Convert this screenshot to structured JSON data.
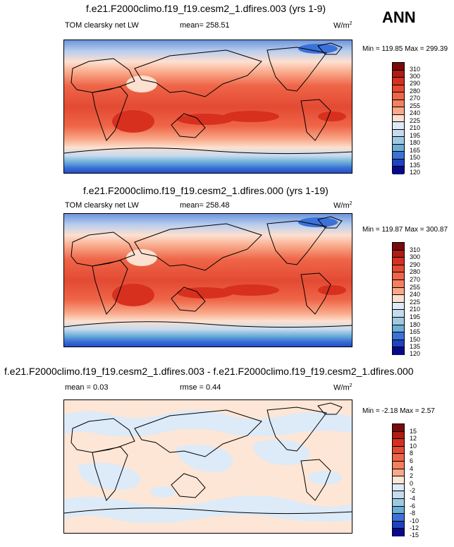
{
  "season": "ANN",
  "panels": [
    {
      "title": "f.e21.F2000climo.f19_f19.cesm2_1.dfires.003 (yrs 1-9)",
      "variable": "TOM clearsky net LW",
      "mean_label": "mean= 258.51",
      "units": "W/m",
      "units_exp": "2",
      "minmax": "Min = 119.85 Max = 299.39",
      "levels": [
        "310",
        "300",
        "290",
        "280",
        "270",
        "255",
        "240",
        "225",
        "210",
        "195",
        "180",
        "165",
        "150",
        "135",
        "120"
      ]
    },
    {
      "title": "f.e21.F2000climo.f19_f19.cesm2_1.dfires.000 (yrs 1-19)",
      "variable": "TOM clearsky net LW",
      "mean_label": "mean= 258.48",
      "units": "W/m",
      "units_exp": "2",
      "minmax": "Min = 119.87 Max = 300.87",
      "levels": [
        "310",
        "300",
        "290",
        "280",
        "270",
        "255",
        "240",
        "225",
        "210",
        "195",
        "180",
        "165",
        "150",
        "135",
        "120"
      ]
    },
    {
      "title": "f.e21.F2000climo.f19_f19.cesm2_1.dfires.003 - f.e21.F2000climo.f19_f19.cesm2_1.dfires.000",
      "variable": "mean =   0.03",
      "mean_label": "rmse =   0.44",
      "units": "W/m",
      "units_exp": "2",
      "minmax": "Min =  -2.18 Max =   2.57",
      "levels": [
        "15",
        "12",
        "10",
        "8",
        "6",
        "4",
        "2",
        "0",
        "-2",
        "-4",
        "-6",
        "-8",
        "-10",
        "-12",
        "-15"
      ]
    }
  ],
  "colors": {
    "abs": [
      "#7a0a0a",
      "#b01c14",
      "#d7301f",
      "#e34a33",
      "#ef6548",
      "#f4805e",
      "#f9a98a",
      "#fde0d0",
      "#deebf7",
      "#c6dbef",
      "#9ecae1",
      "#6baed6",
      "#3b72d8",
      "#1f43c0",
      "#08088a"
    ],
    "diff": [
      "#7a0a0a",
      "#b01c14",
      "#d7301f",
      "#e34a33",
      "#ef6548",
      "#f4805e",
      "#f9a98a",
      "#fde6d6",
      "#ddeaf8",
      "#c6dbef",
      "#9ecae1",
      "#6baed6",
      "#3b72d8",
      "#1f43c0",
      "#08088a"
    ]
  }
}
